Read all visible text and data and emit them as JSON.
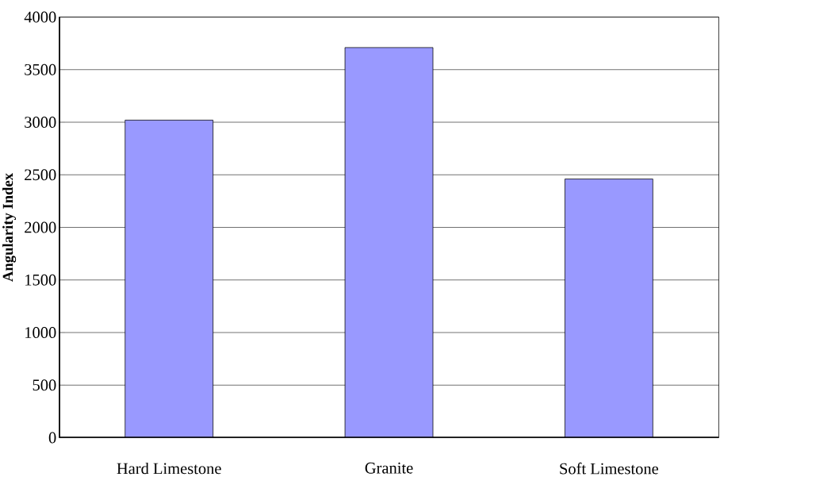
{
  "chart_data": {
    "type": "bar",
    "ylabel": "Angularity Index",
    "categories": [
      "Hard Limestone",
      "Granite",
      "Soft Limestone"
    ],
    "values": [
      3020,
      3710,
      2460
    ],
    "color": "#9999ff",
    "ylim": [
      0,
      4000
    ],
    "yticks": [
      0,
      500,
      1000,
      1500,
      2000,
      2500,
      3000,
      3500,
      4000
    ],
    "grid": "y"
  }
}
